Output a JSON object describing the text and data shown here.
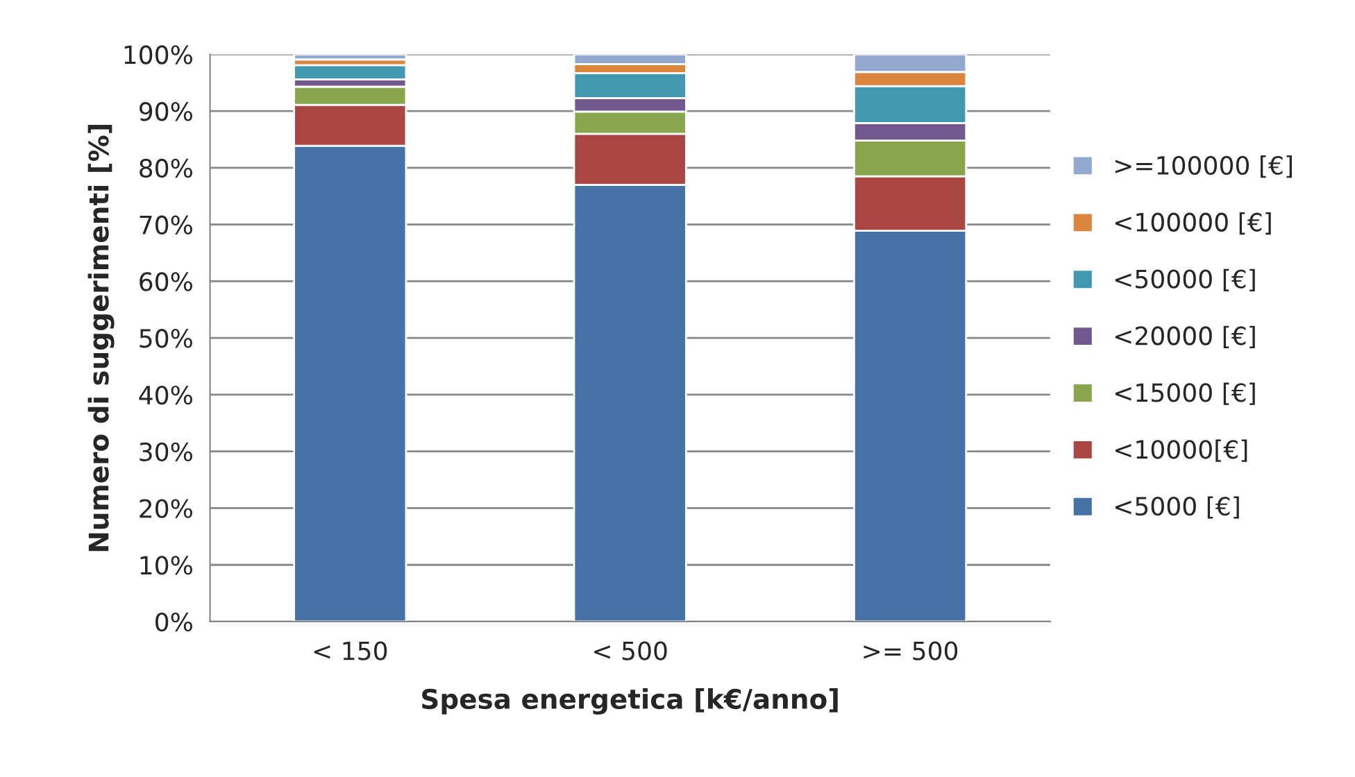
{
  "chart_data": {
    "type": "bar",
    "stacked": true,
    "xlabel": "Spesa energetica [k€/anno]",
    "ylabel": "Numero di suggerimenti [%]",
    "categories": [
      "< 150",
      "< 500",
      ">= 500"
    ],
    "series": [
      {
        "name": "<5000 [€]",
        "color": "#4572a7",
        "values": [
          83.9,
          77.0,
          68.9
        ]
      },
      {
        "name": "<10000[€]",
        "color": "#aa4643",
        "values": [
          7.2,
          9.0,
          9.6
        ]
      },
      {
        "name": "<15000 [€]",
        "color": "#89a54e",
        "values": [
          3.2,
          3.9,
          6.3
        ]
      },
      {
        "name": "<20000 [€]",
        "color": "#71588f",
        "values": [
          1.3,
          2.4,
          3.1
        ]
      },
      {
        "name": "<50000 [€]",
        "color": "#4198af",
        "values": [
          2.5,
          4.4,
          6.5
        ]
      },
      {
        "name": "<100000 [€]",
        "color": "#db843d",
        "values": [
          1.0,
          1.6,
          2.5
        ]
      },
      {
        "name": ">=100000 [€]",
        "color": "#93a9cf",
        "values": [
          0.9,
          1.7,
          3.1
        ]
      }
    ],
    "ylim": [
      0,
      100
    ],
    "yticks": [
      {
        "value": 0,
        "label": "0%"
      },
      {
        "value": 10,
        "label": "10%"
      },
      {
        "value": 20,
        "label": "20%"
      },
      {
        "value": 30,
        "label": "30%"
      },
      {
        "value": 40,
        "label": "40%"
      },
      {
        "value": 50,
        "label": "50%"
      },
      {
        "value": 60,
        "label": "60%"
      },
      {
        "value": 70,
        "label": "70%"
      },
      {
        "value": 80,
        "label": "80%"
      },
      {
        "value": 90,
        "label": "90%"
      },
      {
        "value": 100,
        "label": "100%"
      }
    ],
    "grid": "y",
    "legend": "right"
  }
}
